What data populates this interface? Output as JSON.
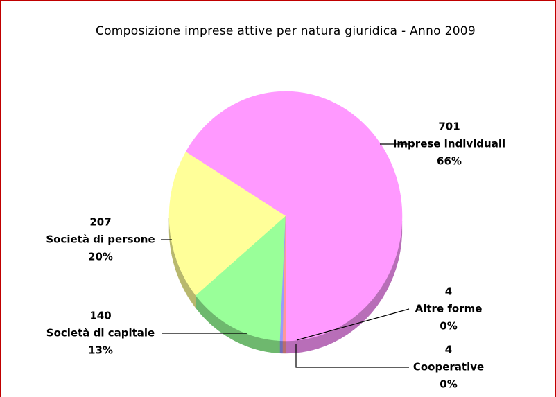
{
  "chart_data": {
    "type": "pie",
    "title": "Composizione imprese attive per natura giuridica - Anno 2009",
    "categories": [
      "Imprese individuali",
      "Società di persone",
      "Società di capitale",
      "Altre forme",
      "Cooperative"
    ],
    "values": [
      701,
      207,
      140,
      4,
      4
    ],
    "percent_labels": [
      "66%",
      "20%",
      "13%",
      "0%",
      "0%"
    ],
    "colors": [
      "#ff99ff",
      "#ffff99",
      "#99ff99",
      "#9999ff",
      "#ff9999"
    ]
  }
}
